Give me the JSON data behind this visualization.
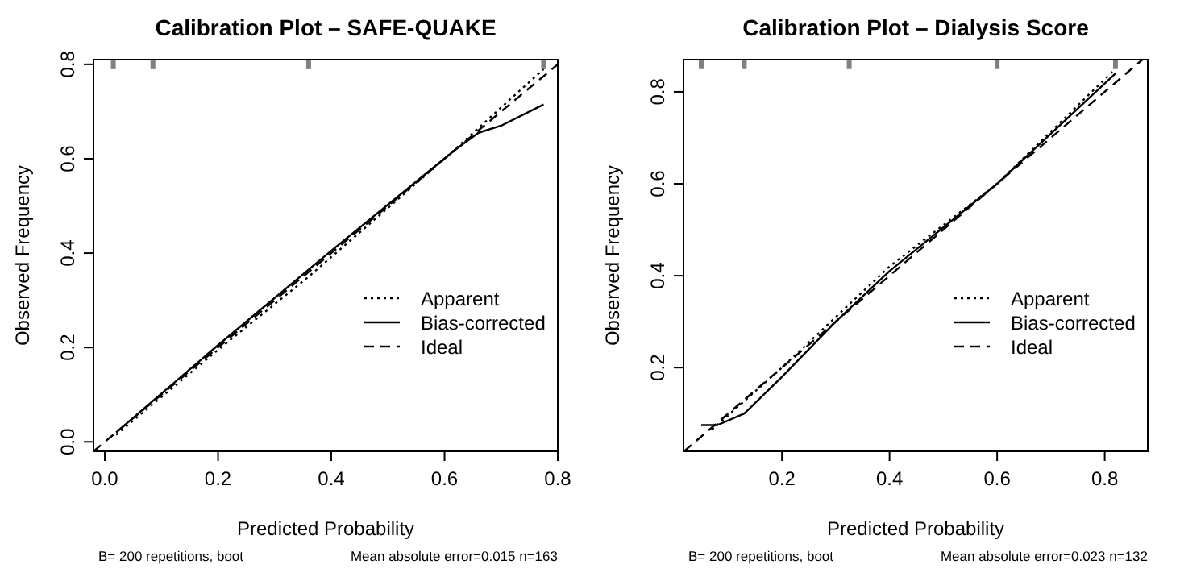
{
  "chart_data": [
    {
      "type": "line",
      "title": "Calibration Plot – SAFE-QUAKE",
      "xlabel": "Predicted Probability",
      "ylabel": "Observed Frequency",
      "xlim": [
        -0.02,
        0.8
      ],
      "ylim": [
        -0.02,
        0.81
      ],
      "xticks": [
        {
          "value": 0,
          "label": "0.0"
        },
        {
          "value": 0.2,
          "label": "0.2"
        },
        {
          "value": 0.4,
          "label": "0.4"
        },
        {
          "value": 0.6,
          "label": "0.6"
        },
        {
          "value": 0.8,
          "label": "0.8"
        }
      ],
      "yticks": [
        {
          "value": 0,
          "label": "0.0"
        },
        {
          "value": 0.2,
          "label": "0.2"
        },
        {
          "value": 0.4,
          "label": "0.4"
        },
        {
          "value": 0.6,
          "label": "0.6"
        },
        {
          "value": 0.8,
          "label": "0.8"
        }
      ],
      "legend": "bottom right",
      "grid": false,
      "series": [
        {
          "name": "Apparent",
          "color": "#000000",
          "line_style": "dotted",
          "x": [
            0.02,
            0.2,
            0.36,
            0.6,
            0.775
          ],
          "values": [
            0.015,
            0.195,
            0.35,
            0.6,
            0.79
          ]
        },
        {
          "name": "Bias-corrected",
          "color": "#000000",
          "line_style": "solid",
          "x": [
            0.02,
            0.2,
            0.4,
            0.62,
            0.66,
            0.7,
            0.775
          ],
          "values": [
            0.02,
            0.205,
            0.405,
            0.62,
            0.655,
            0.67,
            0.715
          ]
        },
        {
          "name": "Ideal",
          "color": "#000000",
          "line_style": "dashed",
          "x": [
            -0.02,
            0.8
          ],
          "values": [
            -0.02,
            0.8
          ]
        },
        {
          "type": "scatter",
          "color": "#808080",
          "marker": "square",
          "x": [
            0.015,
            0.085,
            0.36,
            0.775
          ],
          "values": [
            0.8,
            0.8,
            0.8,
            0.8
          ]
        }
      ],
      "annotations": [
        "B= 200 repetitions, boot",
        "Mean absolute error=0.015 n=163"
      ]
    },
    {
      "type": "line",
      "title": "Calibration Plot – Dialysis Score",
      "xlabel": "Predicted Probability",
      "ylabel": "Observed Frequency",
      "xlim": [
        0.017,
        0.88
      ],
      "ylim": [
        0.018,
        0.87
      ],
      "xticks": [
        0.2,
        0.4,
        0.6,
        0.8
      ],
      "yticks": [
        0.2,
        0.4,
        0.6,
        0.8
      ],
      "legend": "bottom right",
      "grid": false,
      "series": [
        {
          "name": "Apparent",
          "color": "#000000",
          "line_style": "dotted",
          "x": [
            0.07,
            0.2,
            0.4,
            0.6,
            0.82
          ],
          "values": [
            0.065,
            0.2,
            0.42,
            0.6,
            0.85
          ]
        },
        {
          "name": "Bias-corrected",
          "color": "#000000",
          "line_style": "solid",
          "x": [
            0.05,
            0.08,
            0.13,
            0.2,
            0.3,
            0.4,
            0.6,
            0.82
          ],
          "values": [
            0.075,
            0.075,
            0.1,
            0.18,
            0.3,
            0.41,
            0.6,
            0.84
          ]
        },
        {
          "name": "Ideal",
          "color": "#000000",
          "line_style": "dashed",
          "x": [
            0.018,
            0.87
          ],
          "values": [
            0.018,
            0.87
          ]
        },
        {
          "type": "scatter",
          "color": "#808080",
          "marker": "square",
          "x": [
            0.05,
            0.13,
            0.325,
            0.6,
            0.82
          ],
          "values": [
            0.86,
            0.86,
            0.86,
            0.86,
            0.86
          ]
        }
      ],
      "annotations": [
        "B= 200 repetitions, boot",
        "Mean absolute error=0.023 n=132"
      ]
    }
  ]
}
